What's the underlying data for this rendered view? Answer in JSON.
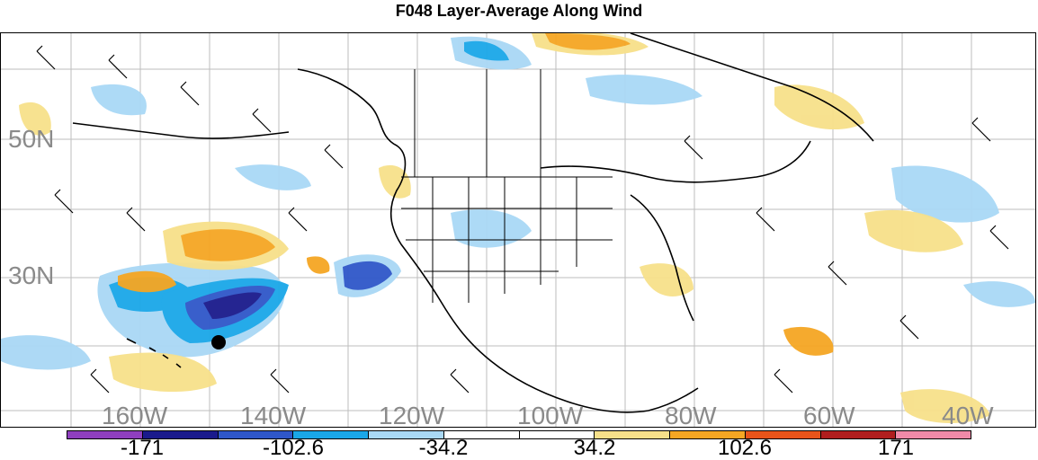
{
  "title": "F048 Layer-Average Along Wind",
  "map": {
    "lat_labels": [
      "50N",
      "30N"
    ],
    "lon_labels": [
      "160W",
      "140W",
      "120W",
      "100W",
      "80W",
      "60W",
      "40W"
    ],
    "positive_color": "#f5a623",
    "negative_color": "#3a8fe0",
    "marker": "black-dot"
  },
  "colorbar": {
    "colors": [
      "#8f3fbf",
      "#1a1a8c",
      "#2f57c9",
      "#1aa7e8",
      "#a9d8f5",
      "#ffffff",
      "#ffffff",
      "#f7e08a",
      "#f5a623",
      "#e8541a",
      "#b01e1e",
      "#f08aa8"
    ],
    "labels": [
      "-171",
      "-102.6",
      "-34.2",
      "34.2",
      "102.6",
      "171"
    ]
  }
}
